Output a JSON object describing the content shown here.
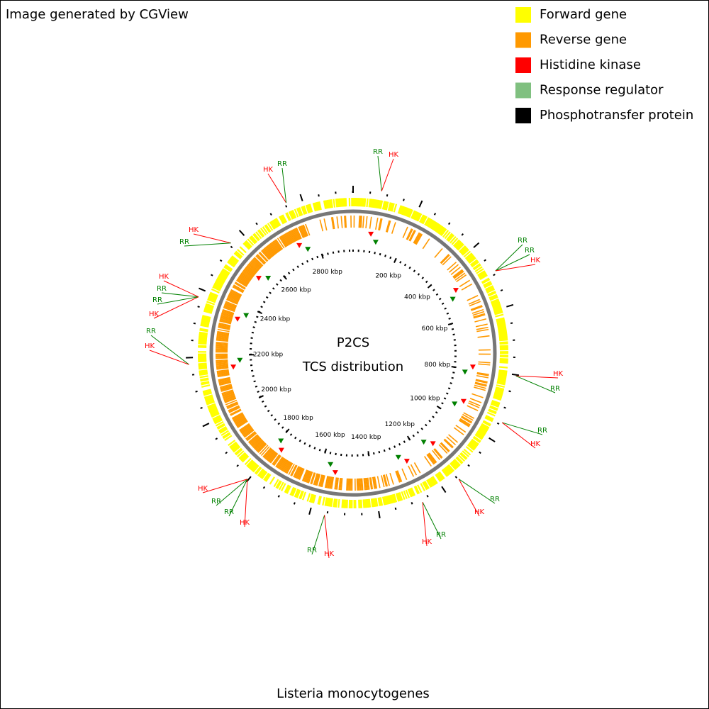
{
  "header": {
    "credit": "Image generated by CGView"
  },
  "legend": [
    {
      "name": "Forward gene",
      "color": "#ffff00"
    },
    {
      "name": "Reverse gene",
      "color": "#ff9900"
    },
    {
      "name": "Histidine kinase",
      "color": "#ff0000"
    },
    {
      "name": "Response regulator",
      "color": "#80c080"
    },
    {
      "name": "Phosphotransfer protein",
      "color": "#000000"
    }
  ],
  "map": {
    "title": "P2CS",
    "subtitle": "TCS distribution",
    "ticks": [
      "200 kbp",
      "400 kbp",
      "600 kbp",
      "800 kbp",
      "1000 kbp",
      "1200 kbp",
      "1400 kbp",
      "1600 kbp",
      "1800 kbp",
      "2000 kbp",
      "2200 kbp",
      "2400 kbp",
      "2600 kbp",
      "2800 kbp"
    ],
    "callouts": [
      [
        {
          "label": "RR",
          "color": "#008000"
        },
        {
          "label": "HK",
          "color": "#ff0000"
        }
      ],
      [
        {
          "label": "RR",
          "color": "#008000"
        },
        {
          "label": "RR",
          "color": "#008000"
        },
        {
          "label": "HK",
          "color": "#ff0000"
        }
      ],
      [
        {
          "label": "HK",
          "color": "#ff0000"
        },
        {
          "label": "RR",
          "color": "#008000"
        }
      ],
      [
        {
          "label": "RR",
          "color": "#008000"
        },
        {
          "label": "HK",
          "color": "#ff0000"
        }
      ],
      [
        {
          "label": "RR",
          "color": "#008000"
        },
        {
          "label": "HK",
          "color": "#ff0000"
        }
      ],
      [
        {
          "label": "RR",
          "color": "#008000"
        },
        {
          "label": "HK",
          "color": "#ff0000"
        }
      ],
      [
        {
          "label": "RR",
          "color": "#008000"
        },
        {
          "label": "HK",
          "color": "#ff0000"
        }
      ],
      [
        {
          "label": "HK",
          "color": "#ff0000"
        },
        {
          "label": "RR",
          "color": "#008000"
        },
        {
          "label": "RR",
          "color": "#008000"
        },
        {
          "label": "HK",
          "color": "#ff0000"
        }
      ],
      [
        {
          "label": "RR",
          "color": "#008000"
        },
        {
          "label": "HK",
          "color": "#ff0000"
        }
      ],
      [
        {
          "label": "HK",
          "color": "#ff0000"
        },
        {
          "label": "RR",
          "color": "#008000"
        },
        {
          "label": "RR",
          "color": "#008000"
        },
        {
          "label": "HK",
          "color": "#ff0000"
        }
      ],
      [
        {
          "label": "HK",
          "color": "#ff0000"
        },
        {
          "label": "RR",
          "color": "#008000"
        }
      ],
      [
        {
          "label": "HK",
          "color": "#ff0000"
        },
        {
          "label": "RR",
          "color": "#008000"
        }
      ]
    ]
  },
  "footer": {
    "organism": "Listeria monocytogenes"
  }
}
